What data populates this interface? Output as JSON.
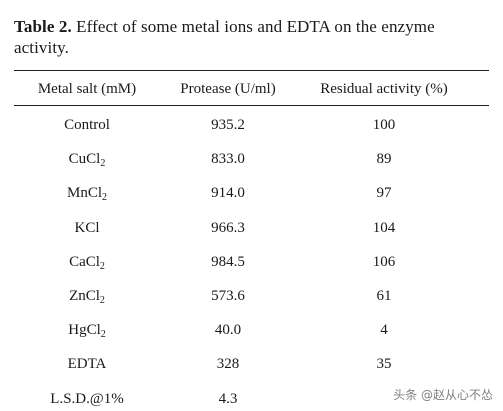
{
  "caption": {
    "label": "Table 2.",
    "text": " Effect of some metal ions and EDTA on the enzyme activity."
  },
  "table": {
    "headers": [
      "Metal salt (mM)",
      "Protease (U/ml)",
      "Residual activity (%)"
    ],
    "rows": [
      {
        "salt": "Control",
        "sub": "",
        "protease": "935.2",
        "residual": "100"
      },
      {
        "salt": "CuCl",
        "sub": "2",
        "protease": "833.0",
        "residual": "89"
      },
      {
        "salt": "MnCl",
        "sub": "2",
        "protease": "914.0",
        "residual": "97"
      },
      {
        "salt": "KCl",
        "sub": "",
        "protease": "966.3",
        "residual": "104"
      },
      {
        "salt": "CaCl",
        "sub": "2",
        "protease": "984.5",
        "residual": "106"
      },
      {
        "salt": "ZnCl",
        "sub": "2",
        "protease": "573.6",
        "residual": "61"
      },
      {
        "salt": "HgCl",
        "sub": "2",
        "protease": "40.0",
        "residual": "4"
      },
      {
        "salt": "EDTA",
        "sub": "",
        "protease": "328",
        "residual": "35"
      },
      {
        "salt": "L.S.D.@1%",
        "sub": "",
        "protease": "4.3",
        "residual": ""
      }
    ]
  },
  "watermark": "头条 @赵从心不怂"
}
